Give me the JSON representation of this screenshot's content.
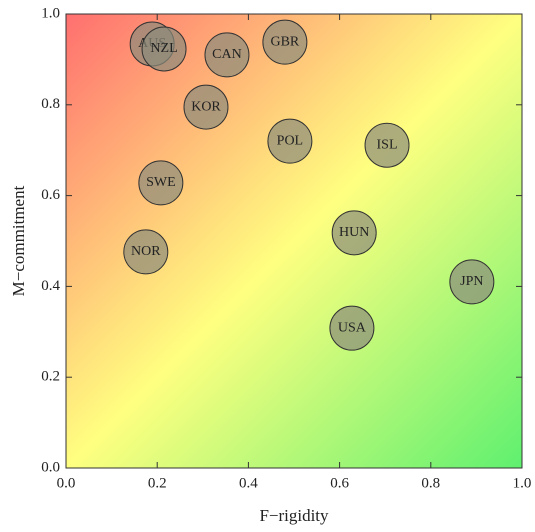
{
  "chart_data": {
    "type": "scatter",
    "xlabel": "F−rigidity",
    "ylabel": "M−commitment",
    "labels": [
      "AUS",
      "NZL",
      "CAN",
      "GBR",
      "KOR",
      "POL",
      "ISL",
      "SWE",
      "HUN",
      "NOR",
      "JPN",
      "USA"
    ],
    "x": [
      0.189,
      0.215,
      0.353,
      0.48,
      0.307,
      0.491,
      0.704,
      0.208,
      0.632,
      0.175,
      0.89,
      0.627
    ],
    "y": [
      0.934,
      0.923,
      0.91,
      0.938,
      0.795,
      0.72,
      0.711,
      0.628,
      0.518,
      0.476,
      0.41,
      0.308
    ],
    "color": "#8a8a7a",
    "xlim": [
      0,
      1
    ],
    "ylim": [
      0,
      1
    ],
    "xticks": [
      {
        "value": 0,
        "label": "0.0"
      },
      {
        "value": 0.2,
        "label": "0.2"
      },
      {
        "value": 0.4,
        "label": "0.4"
      },
      {
        "value": 0.6,
        "label": "0.6"
      },
      {
        "value": 0.8,
        "label": "0.8"
      },
      {
        "value": 1,
        "label": "1.0"
      }
    ],
    "yticks": [
      {
        "value": 0,
        "label": "0.0"
      },
      {
        "value": 0.2,
        "label": "0.2"
      },
      {
        "value": 0.4,
        "label": "0.4"
      },
      {
        "value": 0.6,
        "label": "0.6"
      },
      {
        "value": 0.8,
        "label": "0.8"
      },
      {
        "value": 1,
        "label": "1.0"
      }
    ]
  }
}
